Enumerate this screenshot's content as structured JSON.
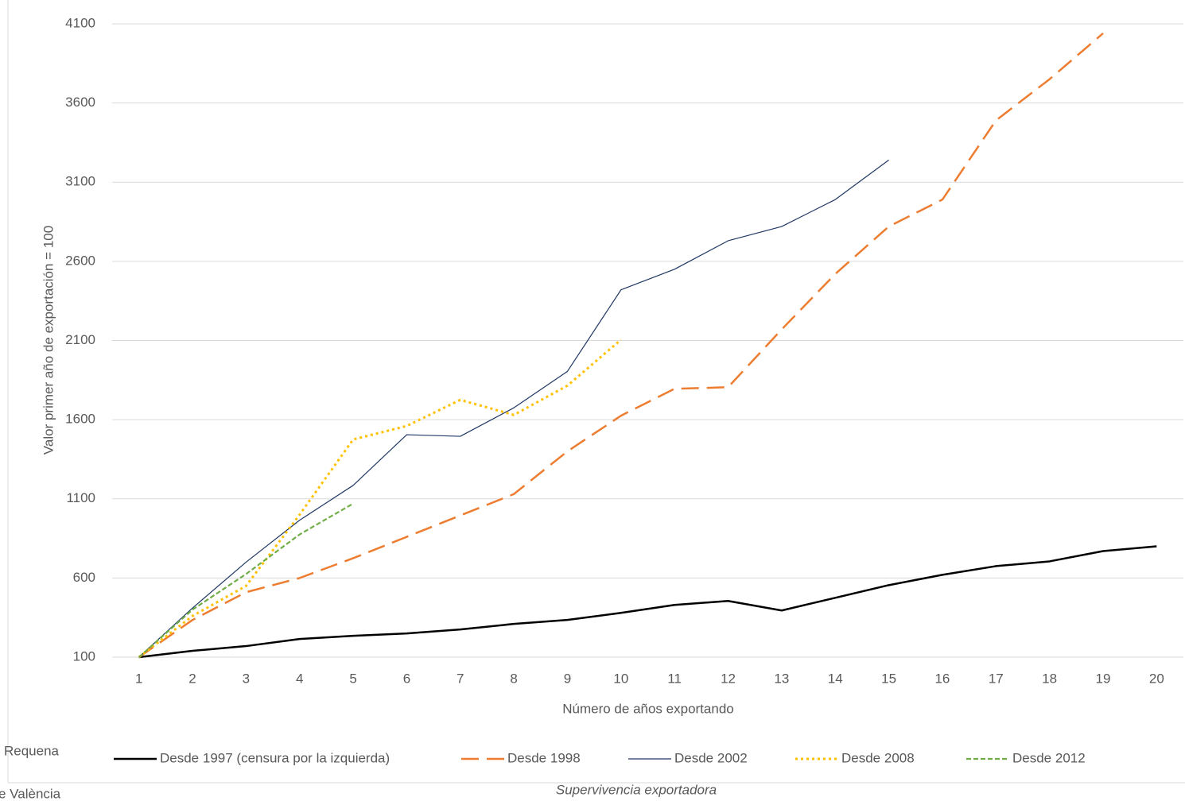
{
  "chart_data": {
    "type": "line",
    "y_label": "Valor primer año de exportación = 100",
    "x_label": "Número de años exportando",
    "categories": [
      "1",
      "2",
      "3",
      "4",
      "5",
      "6",
      "7",
      "8",
      "9",
      "10",
      "11",
      "12",
      "13",
      "14",
      "15",
      "16",
      "17",
      "18",
      "19",
      "20"
    ],
    "ylim": [
      100,
      4100
    ],
    "yticks": [
      100,
      600,
      1100,
      1600,
      2100,
      2600,
      3100,
      3600,
      4100
    ],
    "grid": true,
    "legend": "bottom",
    "series": [
      {
        "name": "Desde 1997 (censura por la izquierda)",
        "color": "#000000",
        "dash": "solid-thick",
        "values": [
          100,
          140,
          170,
          215,
          235,
          250,
          275,
          310,
          335,
          380,
          430,
          455,
          395,
          475,
          555,
          620,
          675,
          705,
          770,
          800
        ]
      },
      {
        "name": "Desde 1998",
        "color": "#ed7d31",
        "dash": "long-dash",
        "values": [
          100,
          335,
          510,
          600,
          725,
          860,
          995,
          1130,
          1400,
          1625,
          1795,
          1805,
          2170,
          2520,
          2820,
          2990,
          3490,
          3750,
          4040,
          null
        ]
      },
      {
        "name": "Desde 2002",
        "color": "#203864",
        "dash": "solid-thin",
        "values": [
          100,
          410,
          700,
          965,
          1185,
          1505,
          1495,
          1675,
          1905,
          2420,
          2550,
          2730,
          2820,
          2990,
          3240,
          null,
          null,
          null,
          null,
          null
        ]
      },
      {
        "name": "Desde 2008",
        "color": "#ffc000",
        "dash": "dotted",
        "values": [
          100,
          360,
          550,
          1000,
          1475,
          1560,
          1725,
          1630,
          1815,
          2105,
          null,
          null,
          null,
          null,
          null,
          null,
          null,
          null,
          null,
          null
        ]
      },
      {
        "name": "Desde 2012",
        "color": "#70ad47",
        "dash": "dashed",
        "values": [
          100,
          400,
          625,
          875,
          1070,
          null,
          null,
          null,
          null,
          null,
          null,
          null,
          null,
          null,
          null,
          null,
          null,
          null,
          null,
          null
        ]
      }
    ]
  },
  "page": {
    "caption": "Supervivencia exportadora",
    "side_text": [
      "Requena",
      "e València"
    ]
  }
}
